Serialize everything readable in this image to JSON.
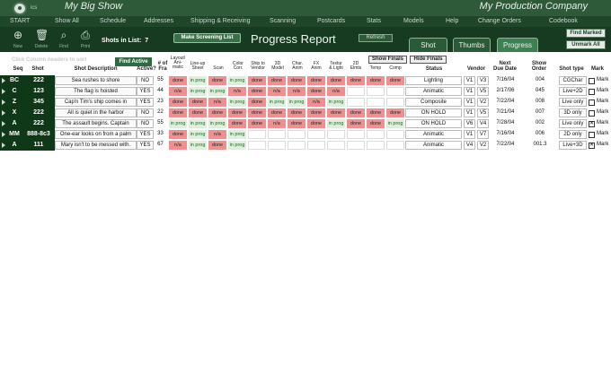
{
  "header": {
    "logo_mark": "ics",
    "show_name": "My Big Show",
    "company_name": "My Production Company"
  },
  "nav": [
    "START",
    "Show All",
    "Schedule",
    "Addresses",
    "Shipping & Receiving",
    "Scanning",
    "Postcards",
    "Stats",
    "Models",
    "Help",
    "Change Orders",
    "Codebook"
  ],
  "toolbar": {
    "new_label": "New",
    "delete_label": "Delete",
    "find_label": "Find",
    "print_label": "Print",
    "shots_in_list_label": "Shots in List:",
    "shots_in_list_count": "7",
    "make_screening_list": "Make Screening List",
    "report_title": "Progress Report",
    "refresh": "Refresh",
    "tabs": [
      "Shot",
      "Thumbs",
      "Progress"
    ],
    "active_tab": "Progress",
    "find_marked": "Find Marked",
    "unmark_all": "Unmark All"
  },
  "subheader": {
    "hint": "Click Column headers to sort",
    "find_active": "Find Active",
    "show_finals": "Show Finals",
    "hide_finals": "Hide Finals"
  },
  "columns": {
    "seq": "Seq",
    "shot": "Shot",
    "desc": "Shot Description",
    "active": "Active?",
    "frames": "# of\nFra",
    "layout": "Layout/\nAni-\nmatic",
    "lineup": "Line-up\nSheet",
    "scan": "Scan",
    "color": "Color\nCorr.",
    "ship": "Ship to\nVendor",
    "model3d": "3D\nModel",
    "char": "Char.\nAnim",
    "fx": "FX\nAnim",
    "texture": "Textur\n& Light",
    "elmts": "2D\nElmts",
    "temp": "Temp",
    "comp": "Comp",
    "status": "Status",
    "vendor": "Vendor",
    "due": "Next\nDue Date",
    "order": "Show\nOrder",
    "type": "Shot type",
    "mark": "Mark"
  },
  "rows": [
    {
      "seq": "BC",
      "shot": "222",
      "desc": "Sea rushes to shore",
      "active": "NO",
      "frames": "55",
      "stages": [
        "done",
        "in prog",
        "done",
        "in prog",
        "done",
        "done",
        "done",
        "done",
        "done",
        "done",
        "done",
        "done"
      ],
      "status": "Lighting",
      "vendor": "V1",
      "version": "V3",
      "due": "7/16/04",
      "order": "004",
      "type": "CGChar",
      "marked": false,
      "mark_label": "Mark"
    },
    {
      "seq": "C",
      "shot": "123",
      "desc": "The flag is hoisted",
      "active": "YES",
      "frames": "44",
      "stages": [
        "n/a",
        "in prog",
        "in prog",
        "n/a",
        "done",
        "n/a",
        "n/a",
        "done",
        "n/a",
        "",
        "",
        ""
      ],
      "status": "Animatic",
      "vendor": "V1",
      "version": "V5",
      "due": "2/17/06",
      "order": "045",
      "type": "Live+2D",
      "marked": false,
      "mark_label": "Mark"
    },
    {
      "seq": "Z",
      "shot": "345",
      "desc": "Cap'n Tim's ship comes in",
      "active": "YES",
      "frames": "23",
      "stages": [
        "done",
        "done",
        "n/a",
        "in prog",
        "done",
        "in prog",
        "in prog",
        "n/a",
        "in prog",
        "",
        "",
        ""
      ],
      "status": "Composite",
      "vendor": "V1",
      "version": "V2",
      "due": "7/22/04",
      "order": "008",
      "type": "Live only",
      "marked": false,
      "mark_label": "Mark"
    },
    {
      "seq": "X",
      "shot": "222",
      "desc": "All is quiet in the harbor",
      "active": "NO",
      "frames": "22",
      "stages": [
        "done",
        "done",
        "done",
        "done",
        "done",
        "done",
        "done",
        "done",
        "done",
        "done",
        "done",
        "done"
      ],
      "status": "ON HOLD",
      "vendor": "V1",
      "version": "V5",
      "due": "7/21/04",
      "order": "007",
      "type": "3D only",
      "marked": false,
      "mark_label": "Mark"
    },
    {
      "seq": "A",
      "shot": "222",
      "desc": "The assault begins. Captain",
      "active": "NO",
      "frames": "55",
      "stages": [
        "in prog",
        "in prog",
        "in prog",
        "done",
        "done",
        "n/a",
        "done",
        "done",
        "in prog",
        "done",
        "done",
        "in prog"
      ],
      "status": "ON HOLD",
      "vendor": "V6",
      "version": "V4",
      "due": "7/28/04",
      "order": "002",
      "type": "Live only",
      "marked": true,
      "mark_label": "Mark"
    },
    {
      "seq": "MM",
      "shot": "888-8c3",
      "desc": "One-ear looks on from a palm",
      "active": "YES",
      "frames": "33",
      "stages": [
        "done",
        "in prog",
        "n/a",
        "in prog",
        "",
        "",
        "",
        "",
        "",
        "",
        "",
        ""
      ],
      "status": "Animatic",
      "vendor": "V1",
      "version": "V7",
      "due": "7/16/04",
      "order": "006",
      "type": "2D only",
      "marked": false,
      "mark_label": "Mark"
    },
    {
      "seq": "A",
      "shot": "111",
      "desc": "Mary isn't to be messed with.",
      "active": "YES",
      "frames": "67",
      "stages": [
        "n/a",
        "in prog",
        "done",
        "in prog",
        "",
        "",
        "",
        "",
        "",
        "",
        "",
        ""
      ],
      "status": "Animatic",
      "vendor": "V4",
      "version": "V2",
      "due": "7/22/04",
      "order": "001.3",
      "type": "Live+3D",
      "marked": true,
      "mark_label": "Mark"
    }
  ],
  "colors": {
    "brand_dark": "#0f3818",
    "nav": "#1f4629",
    "done": "#f08f8f",
    "in_prog": "#dfeedd"
  }
}
